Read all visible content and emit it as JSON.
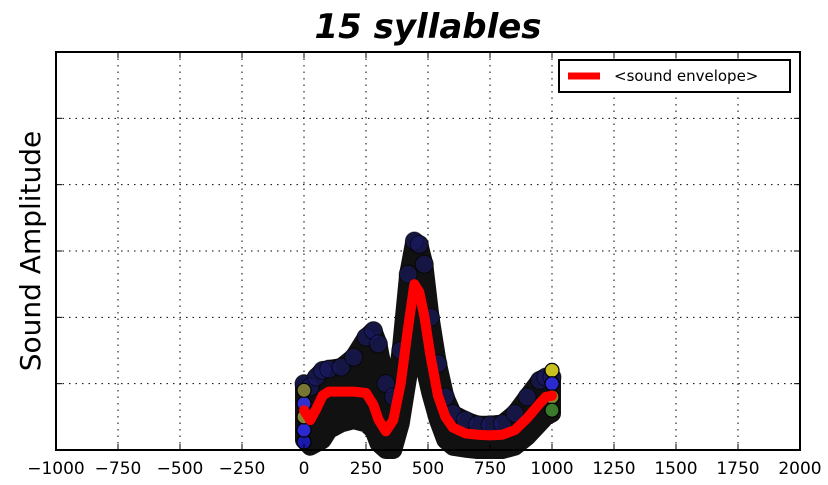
{
  "chart_data": {
    "type": "line",
    "title": "15 syllables",
    "xlabel": "",
    "ylabel": "Sound Amplitude",
    "xlim": [
      -1000,
      2000
    ],
    "ylim": [
      0,
      6
    ],
    "xticks": [
      -1000,
      -750,
      -500,
      -250,
      0,
      250,
      500,
      750,
      1000,
      1250,
      1500,
      1750,
      2000
    ],
    "xtick_labels": [
      "−1000",
      "−750",
      "−500",
      "−250",
      "0",
      "250",
      "500",
      "750",
      "1000",
      "1250",
      "1500",
      "1750",
      "2000"
    ],
    "yticks": [
      0,
      1,
      2,
      3,
      4,
      5,
      6
    ],
    "grid": true,
    "legend": {
      "position": "top-right",
      "entries": [
        "<sound envelope>"
      ]
    },
    "series": [
      {
        "name": "<sound envelope>",
        "color": "#ff0000",
        "x": [
          0,
          25,
          50,
          75,
          100,
          150,
          200,
          250,
          280,
          300,
          330,
          360,
          390,
          420,
          445,
          465,
          485,
          510,
          540,
          570,
          600,
          650,
          700,
          750,
          800,
          850,
          900,
          950,
          975,
          1000
        ],
        "values": [
          0.6,
          0.45,
          0.62,
          0.82,
          0.88,
          0.88,
          0.88,
          0.86,
          0.68,
          0.46,
          0.28,
          0.45,
          1.0,
          1.85,
          2.5,
          2.38,
          2.02,
          1.42,
          0.82,
          0.5,
          0.34,
          0.25,
          0.23,
          0.22,
          0.23,
          0.3,
          0.48,
          0.7,
          0.8,
          0.82
        ]
      }
    ],
    "scatter_band": {
      "color": "#111111",
      "upper": [
        1.0,
        0.95,
        1.1,
        1.2,
        1.22,
        1.25,
        1.4,
        1.7,
        1.8,
        1.6,
        1.0,
        0.8,
        1.5,
        2.65,
        3.15,
        3.1,
        2.8,
        2.0,
        1.3,
        0.8,
        0.55,
        0.45,
        0.38,
        0.38,
        0.4,
        0.55,
        0.8,
        1.05,
        1.1,
        1.1
      ],
      "lower": [
        0.15,
        0.05,
        0.1,
        0.15,
        0.3,
        0.4,
        0.45,
        0.4,
        0.3,
        0.1,
        0.0,
        0.0,
        0.4,
        1.1,
        1.75,
        1.6,
        1.25,
        0.85,
        0.45,
        0.15,
        0.05,
        0.02,
        0.0,
        0.0,
        0.0,
        0.05,
        0.2,
        0.4,
        0.5,
        0.55
      ]
    },
    "edge_markers": [
      {
        "x": 0,
        "y": 0.12,
        "color": "#1a1aaa"
      },
      {
        "x": 0,
        "y": 0.3,
        "color": "#2a2ad0"
      },
      {
        "x": 0,
        "y": 0.5,
        "color": "#888833"
      },
      {
        "x": 0,
        "y": 0.7,
        "color": "#3030cc"
      },
      {
        "x": 0,
        "y": 0.9,
        "color": "#777733"
      },
      {
        "x": 1000,
        "y": 1.2,
        "color": "#c8c020"
      },
      {
        "x": 1000,
        "y": 1.0,
        "color": "#2a2ad0"
      },
      {
        "x": 1000,
        "y": 0.8,
        "color": "#888833"
      },
      {
        "x": 1000,
        "y": 0.6,
        "color": "#3a7a2a"
      }
    ]
  }
}
